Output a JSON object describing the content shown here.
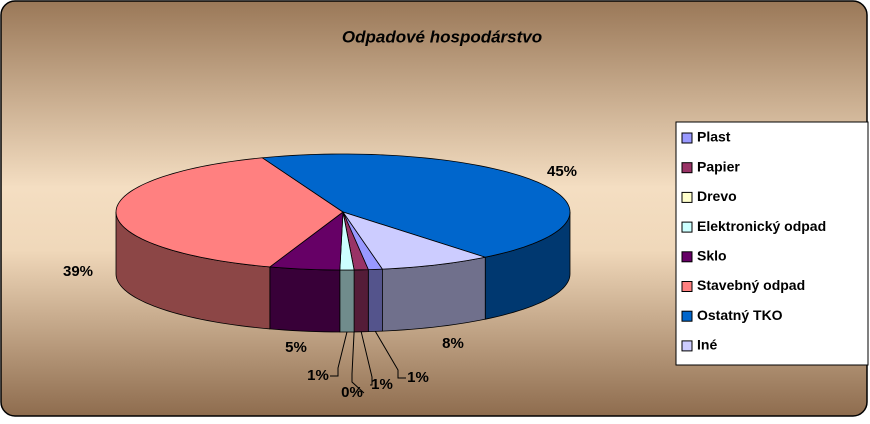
{
  "chart_data": {
    "type": "pie3d",
    "title": "Odpadové hospodárstvo",
    "categories": [
      "Plast",
      "Papier",
      "Drevo",
      "Elektronický odpad",
      "Sklo",
      "Stavebný odpad",
      "Ostatný TKO",
      "Iné"
    ],
    "values": [
      1,
      1,
      0,
      1,
      5,
      39,
      45,
      8
    ],
    "value_labels": [
      "1%",
      "1%",
      "0%",
      "1%",
      "5%",
      "39%",
      "45%",
      "8%"
    ],
    "colors": [
      "#9999ff",
      "#993366",
      "#ffffcc",
      "#ccffff",
      "#660066",
      "#ff8080",
      "#0066cc",
      "#ccccff"
    ],
    "legend": "right"
  }
}
